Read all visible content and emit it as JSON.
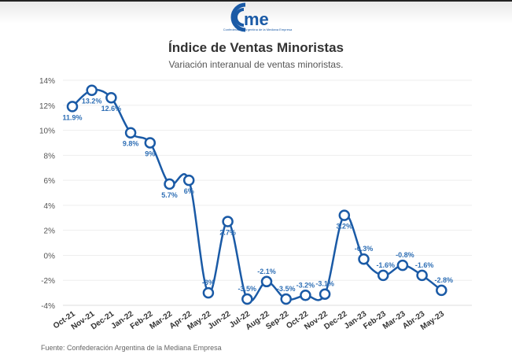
{
  "logo": {
    "text": "cme",
    "tagline": "Confederación Argentina de la Mediana Empresa",
    "color": "#1a5aa6"
  },
  "header": {
    "title": "Índice de Ventas Minoristas",
    "subtitle": "Variación interanual de ventas minoristas."
  },
  "footer": {
    "source": "Fuente: Confederación Argentina de la Mediana Empresa"
  },
  "chart_data": {
    "type": "line",
    "title": "Índice de Ventas Minoristas",
    "subtitle": "Variación interanual de ventas minoristas.",
    "categories": [
      "Oct-21",
      "Nov-21",
      "Dec-21",
      "Jan-22",
      "Feb-22",
      "Mar-22",
      "Apr-22",
      "May-22",
      "Jun-22",
      "Jul-22",
      "Aug-22",
      "Sep-22",
      "Oct-22",
      "Nov-22",
      "Dec-22",
      "Jan-23",
      "Feb-23",
      "Mar-23",
      "Abr-23",
      "May-23"
    ],
    "values": [
      11.9,
      13.2,
      12.6,
      9.8,
      9,
      5.7,
      6,
      -3,
      2.7,
      -3.5,
      -2.1,
      -3.5,
      -3.2,
      -3.1,
      3.2,
      -0.3,
      -1.6,
      -0.8,
      -1.6,
      -2.8
    ],
    "data_labels": [
      "11.9%",
      "13.2%",
      "12.6%",
      "9.8%",
      "9%",
      "5.7%",
      "6%",
      "-3%",
      "2.7%",
      "-3.5%",
      "-2.1%",
      "-3.5%",
      "-3.2%",
      "-3.1%",
      "3.2%",
      "-0.3%",
      "-1.6%",
      "-0.8%",
      "-1.6%",
      "-2.8%"
    ],
    "yticks": [
      14,
      12,
      10,
      8,
      6,
      4,
      2,
      0,
      -2,
      -4
    ],
    "ytick_labels": [
      "14%",
      "12%",
      "10%",
      "8%",
      "6%",
      "4%",
      "2%",
      "0%",
      "-2%",
      "-4%"
    ],
    "ylim": [
      -4,
      14
    ],
    "grid": true,
    "smooth": true,
    "line_color": "#1a5aa6",
    "label_color": "#2f6fb5"
  }
}
